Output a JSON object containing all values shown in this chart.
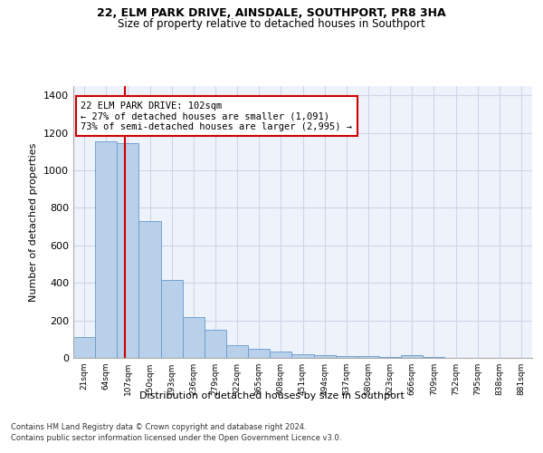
{
  "title1": "22, ELM PARK DRIVE, AINSDALE, SOUTHPORT, PR8 3HA",
  "title2": "Size of property relative to detached houses in Southport",
  "xlabel": "Distribution of detached houses by size in Southport",
  "ylabel": "Number of detached properties",
  "categories": [
    "21sqm",
    "64sqm",
    "107sqm",
    "150sqm",
    "193sqm",
    "236sqm",
    "279sqm",
    "322sqm",
    "365sqm",
    "408sqm",
    "451sqm",
    "494sqm",
    "537sqm",
    "580sqm",
    "623sqm",
    "666sqm",
    "709sqm",
    "752sqm",
    "795sqm",
    "838sqm",
    "881sqm"
  ],
  "bar_heights": [
    110,
    1155,
    1145,
    730,
    418,
    218,
    152,
    70,
    48,
    32,
    20,
    15,
    10,
    10,
    5,
    15,
    5,
    0,
    0,
    0,
    0
  ],
  "bar_color": "#b8d0ea",
  "bar_edge_color": "#6699cc",
  "vline_color": "#cc0000",
  "vline_x_index": 2.38,
  "annotation_text": "22 ELM PARK DRIVE: 102sqm\n← 27% of detached houses are smaller (1,091)\n73% of semi-detached houses are larger (2,995) →",
  "ylim": [
    0,
    1450
  ],
  "yticks": [
    0,
    200,
    400,
    600,
    800,
    1000,
    1200,
    1400
  ],
  "footer1": "Contains HM Land Registry data © Crown copyright and database right 2024.",
  "footer2": "Contains public sector information licensed under the Open Government Licence v3.0.",
  "bg_color": "#eef2fb",
  "grid_color": "#cdd5e8",
  "white": "#ffffff"
}
